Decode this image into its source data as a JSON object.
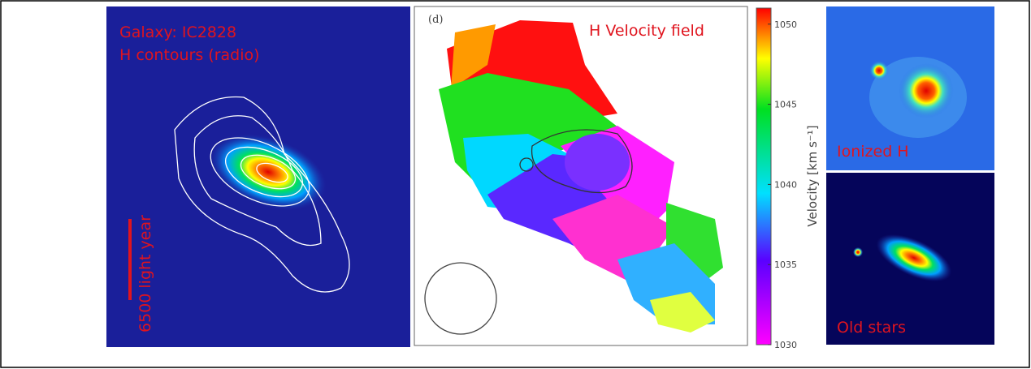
{
  "left_panel": {
    "title_line1": "Galaxy: IC2828",
    "title_line2": "H contours (radio)",
    "scale_label": "6500 light year"
  },
  "middle_panel": {
    "panel_label": "(d)",
    "title": "H Velocity field",
    "colorbar": {
      "label": "Velocity [km s⁻¹]",
      "lim": [
        1030,
        1051
      ],
      "ticks": [
        1030,
        1035,
        1040,
        1045,
        1050
      ]
    }
  },
  "right_top_panel": {
    "label": "Ionized H"
  },
  "right_bottom_panel": {
    "label": "Old stars"
  }
}
